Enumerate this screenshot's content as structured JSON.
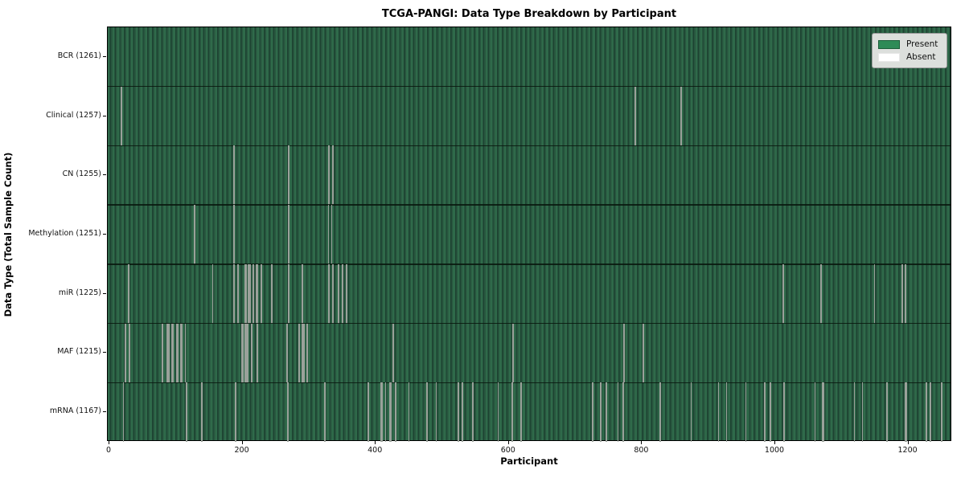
{
  "figure": {
    "title": "TCGA-PANGI: Data Type Breakdown by Participant"
  },
  "chart_data": {
    "type": "heatmap",
    "title": "TCGA-PANGI: Data Type Breakdown by Participant",
    "xlabel": "Participant",
    "ylabel": "Data Type (Total Sample Count)",
    "x_ticks": [
      0,
      200,
      400,
      600,
      800,
      1000,
      1200
    ],
    "x_range": [
      0,
      1261
    ],
    "n_participants": 1261,
    "grid": false,
    "colors": {
      "present": "#2e8b57",
      "present_shade": "#1d4231",
      "absent_stripe": "#9aa19a",
      "row_divider": "#081610",
      "legend_bg": "#dcdfdc"
    },
    "legend": {
      "position": "upper right",
      "entries": [
        {
          "label": "Present",
          "color": "#2e8b57"
        },
        {
          "label": "Absent",
          "color": "#ffffff"
        }
      ]
    },
    "rows": [
      {
        "label": "BCR",
        "total": 1261,
        "tick_label": "BCR (1261)",
        "absent": []
      },
      {
        "label": "Clinical",
        "total": 1257,
        "tick_label": "Clinical (1257)",
        "absent": [
          [
            18,
            2
          ],
          [
            790,
            2
          ],
          [
            859,
            2
          ]
        ]
      },
      {
        "label": "CN",
        "total": 1255,
        "tick_label": "CN (1255)",
        "absent": [
          [
            187,
            2
          ],
          [
            269,
            2
          ],
          [
            330,
            2
          ],
          [
            336,
            2
          ]
        ]
      },
      {
        "label": "Methylation",
        "total": 1251,
        "tick_label": "Methylation (1251)",
        "absent": [
          [
            128,
            2
          ],
          [
            187,
            2
          ],
          [
            269,
            2
          ],
          [
            329,
            2
          ],
          [
            334,
            2
          ]
        ]
      },
      {
        "label": "miR",
        "total": 1225,
        "tick_label": "miR (1225)",
        "absent": [
          [
            29,
            2
          ],
          [
            155,
            2
          ],
          [
            187,
            2
          ],
          [
            193,
            2
          ],
          [
            205,
            3
          ],
          [
            210,
            4
          ],
          [
            216,
            3
          ],
          [
            222,
            4
          ],
          [
            228,
            3
          ],
          [
            244,
            2
          ],
          [
            269,
            2
          ],
          [
            290,
            2
          ],
          [
            330,
            3
          ],
          [
            336,
            2
          ],
          [
            344,
            3
          ],
          [
            350,
            2
          ],
          [
            356,
            2
          ],
          [
            1012,
            2
          ],
          [
            1069,
            2
          ],
          [
            1149,
            2
          ],
          [
            1191,
            3
          ],
          [
            1196,
            2
          ]
        ]
      },
      {
        "label": "MAF",
        "total": 1215,
        "tick_label": "MAF (1215)",
        "absent": [
          [
            24,
            2
          ],
          [
            30,
            2
          ],
          [
            80,
            3
          ],
          [
            88,
            4
          ],
          [
            95,
            3
          ],
          [
            102,
            4
          ],
          [
            108,
            3
          ],
          [
            114,
            2
          ],
          [
            200,
            4
          ],
          [
            206,
            5
          ],
          [
            214,
            3
          ],
          [
            222,
            2
          ],
          [
            267,
            2
          ],
          [
            285,
            3
          ],
          [
            291,
            4
          ],
          [
            297,
            2
          ],
          [
            426,
            2
          ],
          [
            606,
            2
          ],
          [
            773,
            2
          ],
          [
            802,
            3
          ]
        ]
      },
      {
        "label": "mRNA",
        "total": 1167,
        "tick_label": "mRNA (1167)",
        "absent": [
          [
            21,
            2
          ],
          [
            116,
            2
          ],
          [
            139,
            2
          ],
          [
            190,
            2
          ],
          [
            268,
            2
          ],
          [
            324,
            2
          ],
          [
            389,
            2
          ],
          [
            409,
            3
          ],
          [
            415,
            2
          ],
          [
            422,
            3
          ],
          [
            430,
            2
          ],
          [
            450,
            2
          ],
          [
            477,
            2
          ],
          [
            491,
            2
          ],
          [
            524,
            2
          ],
          [
            530,
            2
          ],
          [
            546,
            2
          ],
          [
            584,
            2
          ],
          [
            605,
            2
          ],
          [
            618,
            2
          ],
          [
            726,
            2
          ],
          [
            738,
            2
          ],
          [
            746,
            2
          ],
          [
            764,
            2
          ],
          [
            772,
            2
          ],
          [
            827,
            2
          ],
          [
            874,
            2
          ],
          [
            915,
            2
          ],
          [
            927,
            2
          ],
          [
            956,
            2
          ],
          [
            984,
            2
          ],
          [
            993,
            2
          ],
          [
            1013,
            3
          ],
          [
            1060,
            2
          ],
          [
            1072,
            3
          ],
          [
            1119,
            2
          ],
          [
            1131,
            2
          ],
          [
            1168,
            2
          ],
          [
            1196,
            3
          ],
          [
            1227,
            2
          ],
          [
            1233,
            2
          ],
          [
            1250,
            2
          ]
        ]
      }
    ]
  }
}
